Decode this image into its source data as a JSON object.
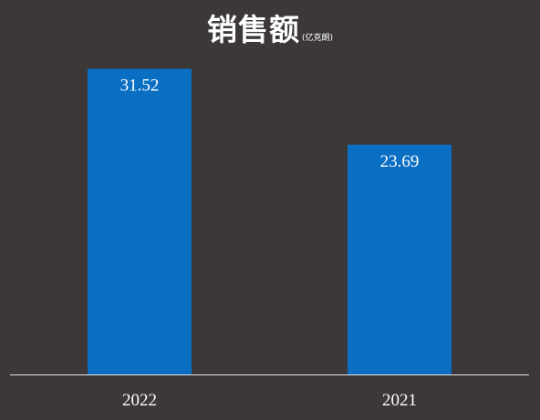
{
  "chart_data": {
    "type": "bar",
    "title": "销售额",
    "subtitle": "(亿克朗)",
    "categories": [
      "2022",
      "2021"
    ],
    "values": [
      31.52,
      23.69
    ],
    "value_labels": [
      "31.52",
      "23.69"
    ],
    "xlabel": "",
    "ylabel": "",
    "ylim": [
      0,
      32.6
    ],
    "grid": false,
    "legend": "none",
    "bar_color": "#0a6fc2",
    "background_color": "#3b3837",
    "axis_color": "#e6e6e6",
    "text_color": "#ffffff"
  }
}
